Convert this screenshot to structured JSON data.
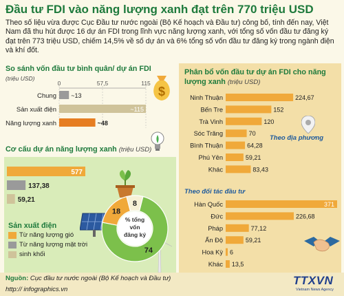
{
  "title": "Đầu tư FDI vào năng lượng xanh đạt trên 770 triệu USD",
  "intro": "Theo số liệu vừa được Cục Đầu tư nước ngoài (Bộ Kế hoạch và Đầu tư) công bố, tính đến nay, Việt Nam đã thu hút được 16 dự án FDI trong lĩnh vực năng lượng xanh, với tổng số vốn đầu tư đăng ký đạt trên 773 triệu USD, chiếm 14,5% về số dự án và 6% tổng số vốn đầu tư đăng ký trong ngành điện và khí đốt.",
  "colors": {
    "green": "#1e7a3c",
    "orange": "#f0a93a",
    "gray": "#9a9a9a",
    "tan": "#cfc39a",
    "dark_orange": "#e67e22",
    "light_green": "#7cc04b",
    "panel_green": "#d9ecb9",
    "panel_tan": "#f3dfa8"
  },
  "icons": [
    "money-bag-icon",
    "lightbulb-icon",
    "solar-panel-icon",
    "wind-turbine-icon",
    "plant-pot-icon",
    "map-pin-icon",
    "handshake-icon"
  ],
  "chart_data": [
    {
      "id": "avg",
      "type": "bar",
      "title": "So sánh vốn đầu tư  bình quân/ dự án FDI",
      "unit": "(triệu USD)",
      "xlim": [
        0,
        115
      ],
      "axis_ticks": [
        "0",
        "57,5",
        "115"
      ],
      "categories": [
        "Chung",
        "Sản xuất điện",
        "Năng lượng xanh"
      ],
      "values": [
        13,
        115,
        48
      ],
      "labels": [
        "~13",
        "~115",
        "~48"
      ]
    },
    {
      "id": "structure",
      "type": "bar",
      "title": "Cơ cấu dự án năng lượng xanh",
      "unit": "(triệu USD)",
      "values": [
        577,
        137.38,
        59.21
      ],
      "labels": [
        "577",
        "137,38",
        "59,21"
      ],
      "legend_title": "Sản xuất điện",
      "legend": [
        "Từ năng lượng gió",
        "Từ năng lượng mặt trời",
        "sinh khối"
      ]
    },
    {
      "id": "pie",
      "type": "pie",
      "center_label": "% tổng vốn đăng ký",
      "values": [
        74,
        18,
        8
      ],
      "labels": [
        "74",
        "18",
        "8"
      ]
    },
    {
      "id": "province",
      "type": "bar",
      "title": "Phân bổ vốn đầu tư dự án FDI cho năng lượng xanh",
      "unit": "(triệu USD)",
      "group_label": "Theo địa phương",
      "categories": [
        "Ninh Thuận",
        "Bến Tre",
        "Trà Vinh",
        "Sóc Trăng",
        "Bình Thuận",
        "Phú Yên",
        "Khác"
      ],
      "values": [
        224.67,
        152,
        120,
        70,
        64.28,
        59.21,
        83.43
      ],
      "labels": [
        "224,67",
        "152",
        "120",
        "70",
        "64,28",
        "59,21",
        "83,43"
      ]
    },
    {
      "id": "partner",
      "type": "bar",
      "group_label": "Theo đối tác đầu tư",
      "categories": [
        "Hàn Quốc",
        "Đức",
        "Pháp",
        "Ấn Độ",
        "Hoa Kỳ",
        "Khác"
      ],
      "values": [
        371,
        226.68,
        77.12,
        59.21,
        6,
        13.5
      ],
      "labels": [
        "371",
        "226,68",
        "77,12",
        "59,21",
        "6",
        "13,5"
      ]
    }
  ],
  "footer": {
    "source_label": "Nguồn:",
    "source_text": " Cục đầu tư nước ngoài (Bộ Kế hoạch và Đầu tư)",
    "website": "http:// infographics.vn",
    "logo": "TTXVN",
    "logo_sub": "Vietnam News Agency"
  }
}
